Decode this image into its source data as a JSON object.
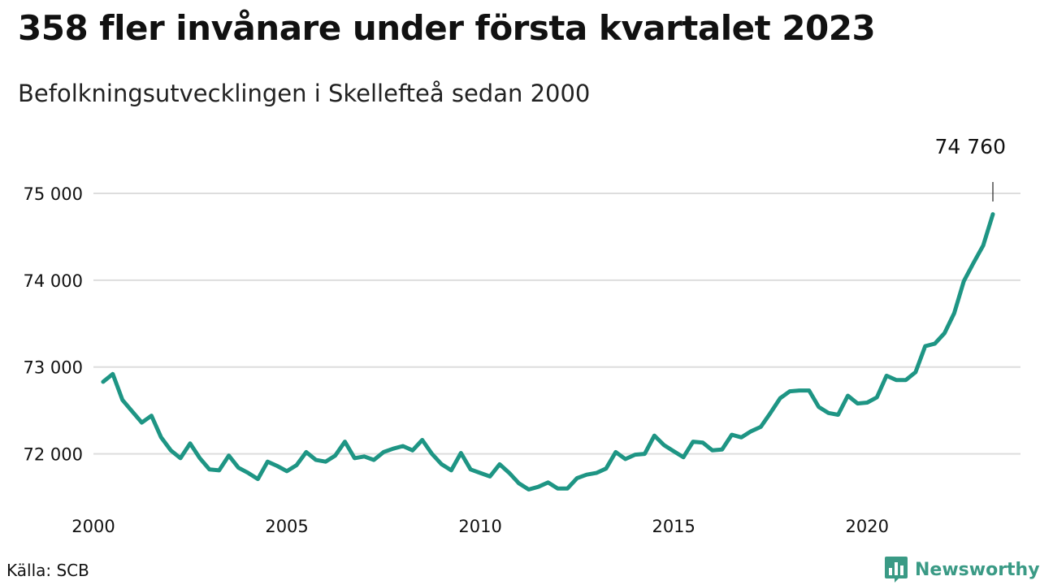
{
  "title": "358 fler invånare under första kvartalet 2023",
  "subtitle": "Befolkningsutvecklingen i Skellefteå sedan 2000",
  "source": "Källa: SCB",
  "brand": {
    "name": "Newsworthy",
    "icon": "bar-chart-logo-icon",
    "color": "#3a9a85"
  },
  "colors": {
    "line": "#1e9584",
    "grid": "#dddddd",
    "text": "#111111"
  },
  "chart_data": {
    "type": "line",
    "title": "358 fler invånare under första kvartalet 2023",
    "subtitle": "Befolkningsutvecklingen i Skellefteå sedan 2000",
    "xlabel": "",
    "ylabel": "",
    "x_ticks": [
      2000,
      2005,
      2010,
      2015,
      2020
    ],
    "x_tick_labels": [
      "2000",
      "2005",
      "2010",
      "2015",
      "2020"
    ],
    "y_ticks": [
      72000,
      73000,
      74000,
      75000
    ],
    "y_tick_labels": [
      "72 000",
      "73 000",
      "74 000",
      "75 000"
    ],
    "xlim": [
      2000,
      2023.25
    ],
    "ylim": [
      71500,
      75000
    ],
    "grid": "horizontal",
    "last_value_label": "74 760",
    "series": [
      {
        "x": [
          2000.25,
          2000.5,
          2000.75,
          2001,
          2001.25,
          2001.5,
          2001.75,
          2002,
          2002.25,
          2002.5,
          2002.75,
          2003,
          2003.25,
          2003.5,
          2003.75,
          2004,
          2004.25,
          2004.5,
          2004.75,
          2005,
          2005.25,
          2005.5,
          2005.75,
          2006,
          2006.25,
          2006.5,
          2006.75,
          2007,
          2007.25,
          2007.5,
          2007.75,
          2008,
          2008.25,
          2008.5,
          2008.75,
          2009,
          2009.25,
          2009.5,
          2009.75,
          2010,
          2010.25,
          2010.5,
          2010.75,
          2011,
          2011.25,
          2011.5,
          2011.75,
          2012,
          2012.25,
          2012.5,
          2012.75,
          2013,
          2013.25,
          2013.5,
          2013.75,
          2014,
          2014.25,
          2014.5,
          2014.75,
          2015,
          2015.25,
          2015.5,
          2015.75,
          2016,
          2016.25,
          2016.5,
          2016.75,
          2017,
          2017.25,
          2017.5,
          2017.75,
          2018,
          2018.25,
          2018.5,
          2018.75,
          2019,
          2019.25,
          2019.5,
          2019.75,
          2020,
          2020.25,
          2020.5,
          2020.75,
          2021,
          2021.25,
          2021.5,
          2021.75,
          2022,
          2022.25,
          2022.5,
          2022.75,
          2023,
          2023.25
        ],
        "values": [
          72830,
          72920,
          72620,
          72490,
          72360,
          72440,
          72190,
          72040,
          71950,
          72120,
          71950,
          71820,
          71810,
          71980,
          71840,
          71780,
          71710,
          71910,
          71860,
          71800,
          71870,
          72020,
          71930,
          71910,
          71980,
          72140,
          71950,
          71970,
          71930,
          72020,
          72060,
          72090,
          72040,
          72160,
          72000,
          71880,
          71810,
          72010,
          71820,
          71780,
          71740,
          71880,
          71780,
          71660,
          71590,
          71620,
          71670,
          71600,
          71600,
          71720,
          71760,
          71780,
          71830,
          72020,
          71940,
          71990,
          72000,
          72210,
          72100,
          72030,
          71960,
          72140,
          72130,
          72040,
          72050,
          72220,
          72190,
          72260,
          72310,
          72470,
          72640,
          72720,
          72730,
          72730,
          72540,
          72470,
          72450,
          72670,
          72580,
          72590,
          72650,
          72900,
          72850,
          72850,
          72940,
          73240,
          73270,
          73390,
          73620,
          73990,
          74200,
          74400,
          74760
        ]
      }
    ]
  }
}
